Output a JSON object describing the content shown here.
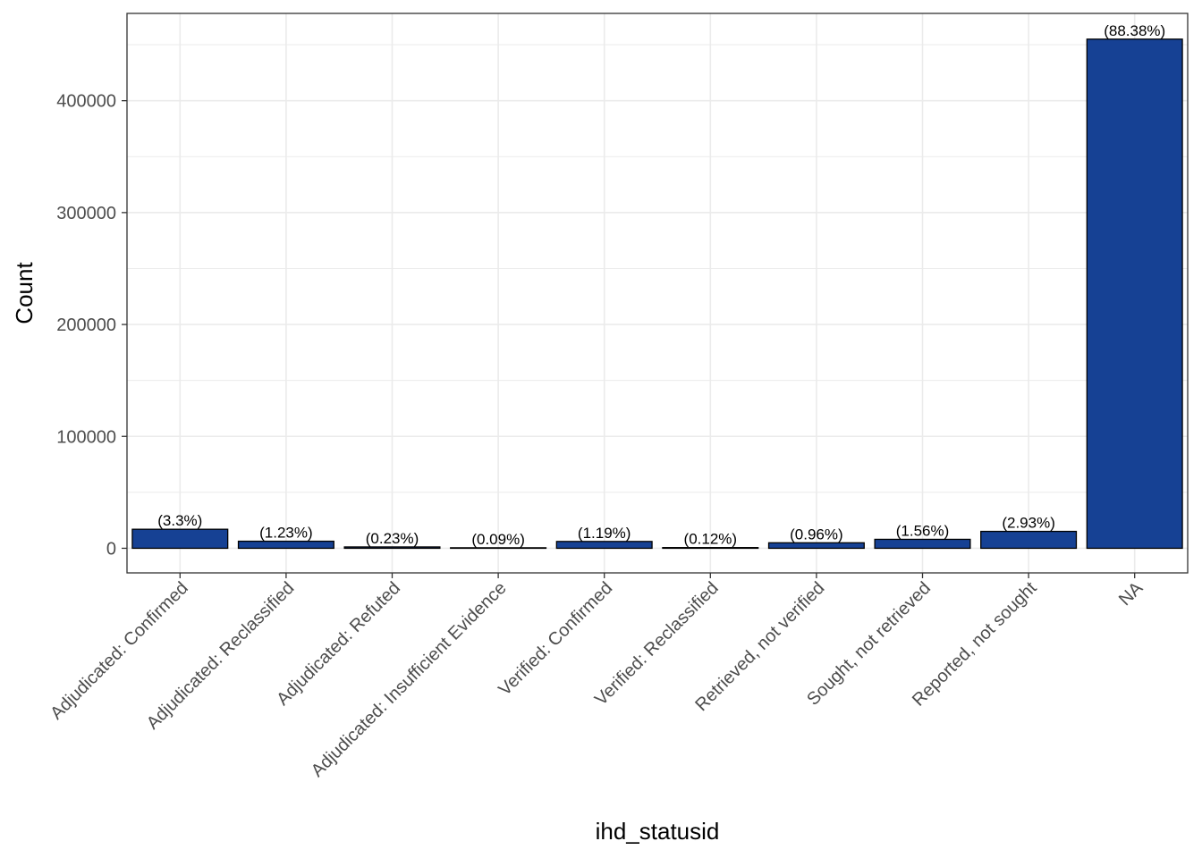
{
  "chart_data": {
    "type": "bar",
    "title": "",
    "xlabel": "ihd_statusid",
    "ylabel": "Count",
    "categories": [
      "Adjudicated: Confirmed",
      "Adjudicated: Reclassified",
      "Adjudicated: Refuted",
      "Adjudicated: Insufficient Evidence",
      "Verified: Confirmed",
      "Verified: Reclassified",
      "Retrieved, not verified",
      "Sought, not retrieved",
      "Reported, not sought",
      "NA"
    ],
    "values": [
      17000,
      6300,
      1200,
      460,
      6100,
      620,
      4900,
      8000,
      15100,
      455000
    ],
    "labels": [
      "(3.3%)",
      "(1.23%)",
      "(0.23%)",
      "(0.09%)",
      "(1.19%)",
      "(0.12%)",
      "(0.96%)",
      "(1.56%)",
      "(2.93%)",
      "(88.38%)"
    ],
    "ylim": [
      -22000,
      478000
    ],
    "yticks": [
      0,
      100000,
      200000,
      300000,
      400000
    ],
    "ytick_labels": [
      "0",
      "100000",
      "200000",
      "300000",
      "400000"
    ],
    "grid": true,
    "bar_color": "#164194",
    "bar_edge_color": "#000000"
  }
}
